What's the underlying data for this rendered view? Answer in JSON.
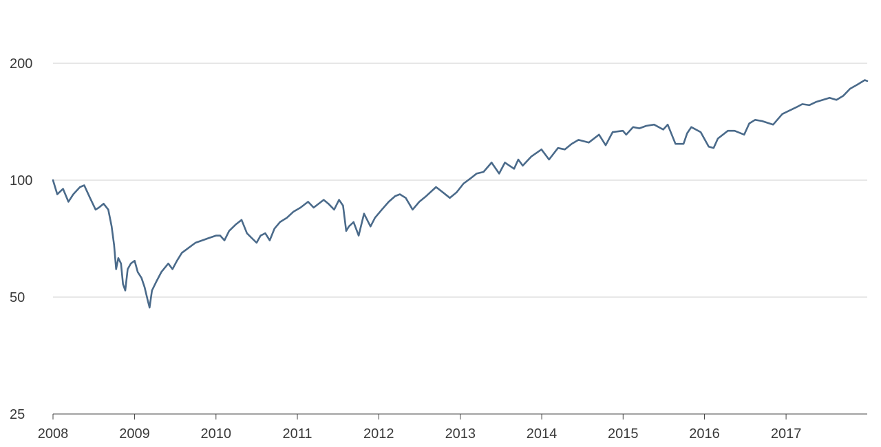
{
  "chart_data": {
    "type": "line",
    "title": "",
    "xlabel": "",
    "ylabel": "",
    "y_scale": "log2",
    "ylim": [
      25,
      200
    ],
    "xlim": [
      "2008-01-01",
      "2017-12-31"
    ],
    "grid": "horizontal",
    "legend": "none",
    "y_ticks": [
      {
        "value": 25,
        "label": "25"
      },
      {
        "value": 50,
        "label": "50"
      },
      {
        "value": 100,
        "label": "100"
      },
      {
        "value": 200,
        "label": "200"
      }
    ],
    "x_ticks": [
      {
        "value": "2008-01-01",
        "label": "2008"
      },
      {
        "value": "2009-01-01",
        "label": "2009"
      },
      {
        "value": "2010-01-01",
        "label": "2010"
      },
      {
        "value": "2011-01-01",
        "label": "2011"
      },
      {
        "value": "2012-01-01",
        "label": "2012"
      },
      {
        "value": "2013-01-01",
        "label": "2013"
      },
      {
        "value": "2014-01-01",
        "label": "2014"
      },
      {
        "value": "2015-01-01",
        "label": "2015"
      },
      {
        "value": "2016-01-01",
        "label": "2016"
      },
      {
        "value": "2017-01-01",
        "label": "2017"
      }
    ],
    "series": [
      {
        "color": "#4a6a8a",
        "points": [
          [
            "2008-01-01",
            100
          ],
          [
            "2008-01-20",
            92
          ],
          [
            "2008-02-15",
            95
          ],
          [
            "2008-03-10",
            88
          ],
          [
            "2008-04-01",
            92
          ],
          [
            "2008-05-01",
            96
          ],
          [
            "2008-05-20",
            97
          ],
          [
            "2008-06-15",
            90
          ],
          [
            "2008-07-10",
            84
          ],
          [
            "2008-07-25",
            85
          ],
          [
            "2008-08-15",
            87
          ],
          [
            "2008-09-05",
            84
          ],
          [
            "2008-09-20",
            76
          ],
          [
            "2008-10-01",
            68
          ],
          [
            "2008-10-10",
            59
          ],
          [
            "2008-10-20",
            63
          ],
          [
            "2008-11-01",
            61
          ],
          [
            "2008-11-10",
            54
          ],
          [
            "2008-11-20",
            52
          ],
          [
            "2008-12-01",
            59
          ],
          [
            "2008-12-15",
            61
          ],
          [
            "2009-01-01",
            62
          ],
          [
            "2009-01-15",
            58
          ],
          [
            "2009-02-01",
            56
          ],
          [
            "2009-02-15",
            53
          ],
          [
            "2009-03-01",
            49
          ],
          [
            "2009-03-09",
            47
          ],
          [
            "2009-03-20",
            52
          ],
          [
            "2009-04-10",
            55
          ],
          [
            "2009-05-01",
            58
          ],
          [
            "2009-06-01",
            61
          ],
          [
            "2009-06-20",
            59
          ],
          [
            "2009-07-10",
            62
          ],
          [
            "2009-08-01",
            65
          ],
          [
            "2009-09-01",
            67
          ],
          [
            "2009-10-01",
            69
          ],
          [
            "2009-11-01",
            70
          ],
          [
            "2009-12-01",
            71
          ],
          [
            "2010-01-01",
            72
          ],
          [
            "2010-01-20",
            72
          ],
          [
            "2010-02-08",
            70
          ],
          [
            "2010-03-01",
            74
          ],
          [
            "2010-04-01",
            77
          ],
          [
            "2010-04-26",
            79
          ],
          [
            "2010-05-20",
            73
          ],
          [
            "2010-06-10",
            71
          ],
          [
            "2010-07-02",
            69
          ],
          [
            "2010-07-20",
            72
          ],
          [
            "2010-08-10",
            73
          ],
          [
            "2010-08-30",
            70
          ],
          [
            "2010-09-20",
            75
          ],
          [
            "2010-10-15",
            78
          ],
          [
            "2010-11-15",
            80
          ],
          [
            "2010-12-15",
            83
          ],
          [
            "2011-01-15",
            85
          ],
          [
            "2011-02-18",
            88
          ],
          [
            "2011-03-15",
            85
          ],
          [
            "2011-04-29",
            89
          ],
          [
            "2011-05-20",
            87
          ],
          [
            "2011-06-15",
            84
          ],
          [
            "2011-07-07",
            89
          ],
          [
            "2011-07-25",
            86
          ],
          [
            "2011-08-08",
            74
          ],
          [
            "2011-08-20",
            76
          ],
          [
            "2011-09-10",
            78
          ],
          [
            "2011-10-03",
            72
          ],
          [
            "2011-10-27",
            82
          ],
          [
            "2011-11-25",
            76
          ],
          [
            "2011-12-15",
            80
          ],
          [
            "2012-01-15",
            84
          ],
          [
            "2012-02-15",
            88
          ],
          [
            "2012-03-15",
            91
          ],
          [
            "2012-04-05",
            92
          ],
          [
            "2012-05-01",
            90
          ],
          [
            "2012-06-01",
            84
          ],
          [
            "2012-07-01",
            88
          ],
          [
            "2012-08-01",
            91
          ],
          [
            "2012-09-14",
            96
          ],
          [
            "2012-10-15",
            93
          ],
          [
            "2012-11-15",
            90
          ],
          [
            "2012-12-15",
            93
          ],
          [
            "2013-01-15",
            98
          ],
          [
            "2013-02-15",
            101
          ],
          [
            "2013-03-15",
            104
          ],
          [
            "2013-04-15",
            105
          ],
          [
            "2013-05-21",
            111
          ],
          [
            "2013-06-24",
            104
          ],
          [
            "2013-07-20",
            111
          ],
          [
            "2013-08-30",
            107
          ],
          [
            "2013-09-18",
            113
          ],
          [
            "2013-10-08",
            109
          ],
          [
            "2013-11-15",
            115
          ],
          [
            "2013-12-31",
            120
          ],
          [
            "2014-02-03",
            113
          ],
          [
            "2014-03-15",
            121
          ],
          [
            "2014-04-15",
            120
          ],
          [
            "2014-05-15",
            124
          ],
          [
            "2014-06-15",
            127
          ],
          [
            "2014-07-31",
            125
          ],
          [
            "2014-09-15",
            131
          ],
          [
            "2014-10-15",
            123
          ],
          [
            "2014-11-15",
            133
          ],
          [
            "2014-12-31",
            134
          ],
          [
            "2015-01-15",
            131
          ],
          [
            "2015-02-15",
            137
          ],
          [
            "2015-03-15",
            136
          ],
          [
            "2015-04-15",
            138
          ],
          [
            "2015-05-20",
            139
          ],
          [
            "2015-06-30",
            135
          ],
          [
            "2015-07-20",
            139
          ],
          [
            "2015-08-24",
            124
          ],
          [
            "2015-09-29",
            124
          ],
          [
            "2015-10-15",
            132
          ],
          [
            "2015-11-03",
            137
          ],
          [
            "2015-12-15",
            133
          ],
          [
            "2016-01-20",
            122
          ],
          [
            "2016-02-11",
            121
          ],
          [
            "2016-03-01",
            128
          ],
          [
            "2016-04-15",
            134
          ],
          [
            "2016-05-15",
            134
          ],
          [
            "2016-06-27",
            131
          ],
          [
            "2016-07-20",
            140
          ],
          [
            "2016-08-15",
            143
          ],
          [
            "2016-09-15",
            142
          ],
          [
            "2016-11-04",
            139
          ],
          [
            "2016-12-15",
            148
          ],
          [
            "2017-02-15",
            154
          ],
          [
            "2017-03-15",
            157
          ],
          [
            "2017-04-15",
            156
          ],
          [
            "2017-05-15",
            159
          ],
          [
            "2017-06-15",
            161
          ],
          [
            "2017-07-15",
            163
          ],
          [
            "2017-08-15",
            161
          ],
          [
            "2017-09-15",
            165
          ],
          [
            "2017-10-15",
            172
          ],
          [
            "2017-11-15",
            176
          ],
          [
            "2017-12-20",
            181
          ],
          [
            "2017-12-31",
            180
          ]
        ]
      }
    ]
  }
}
